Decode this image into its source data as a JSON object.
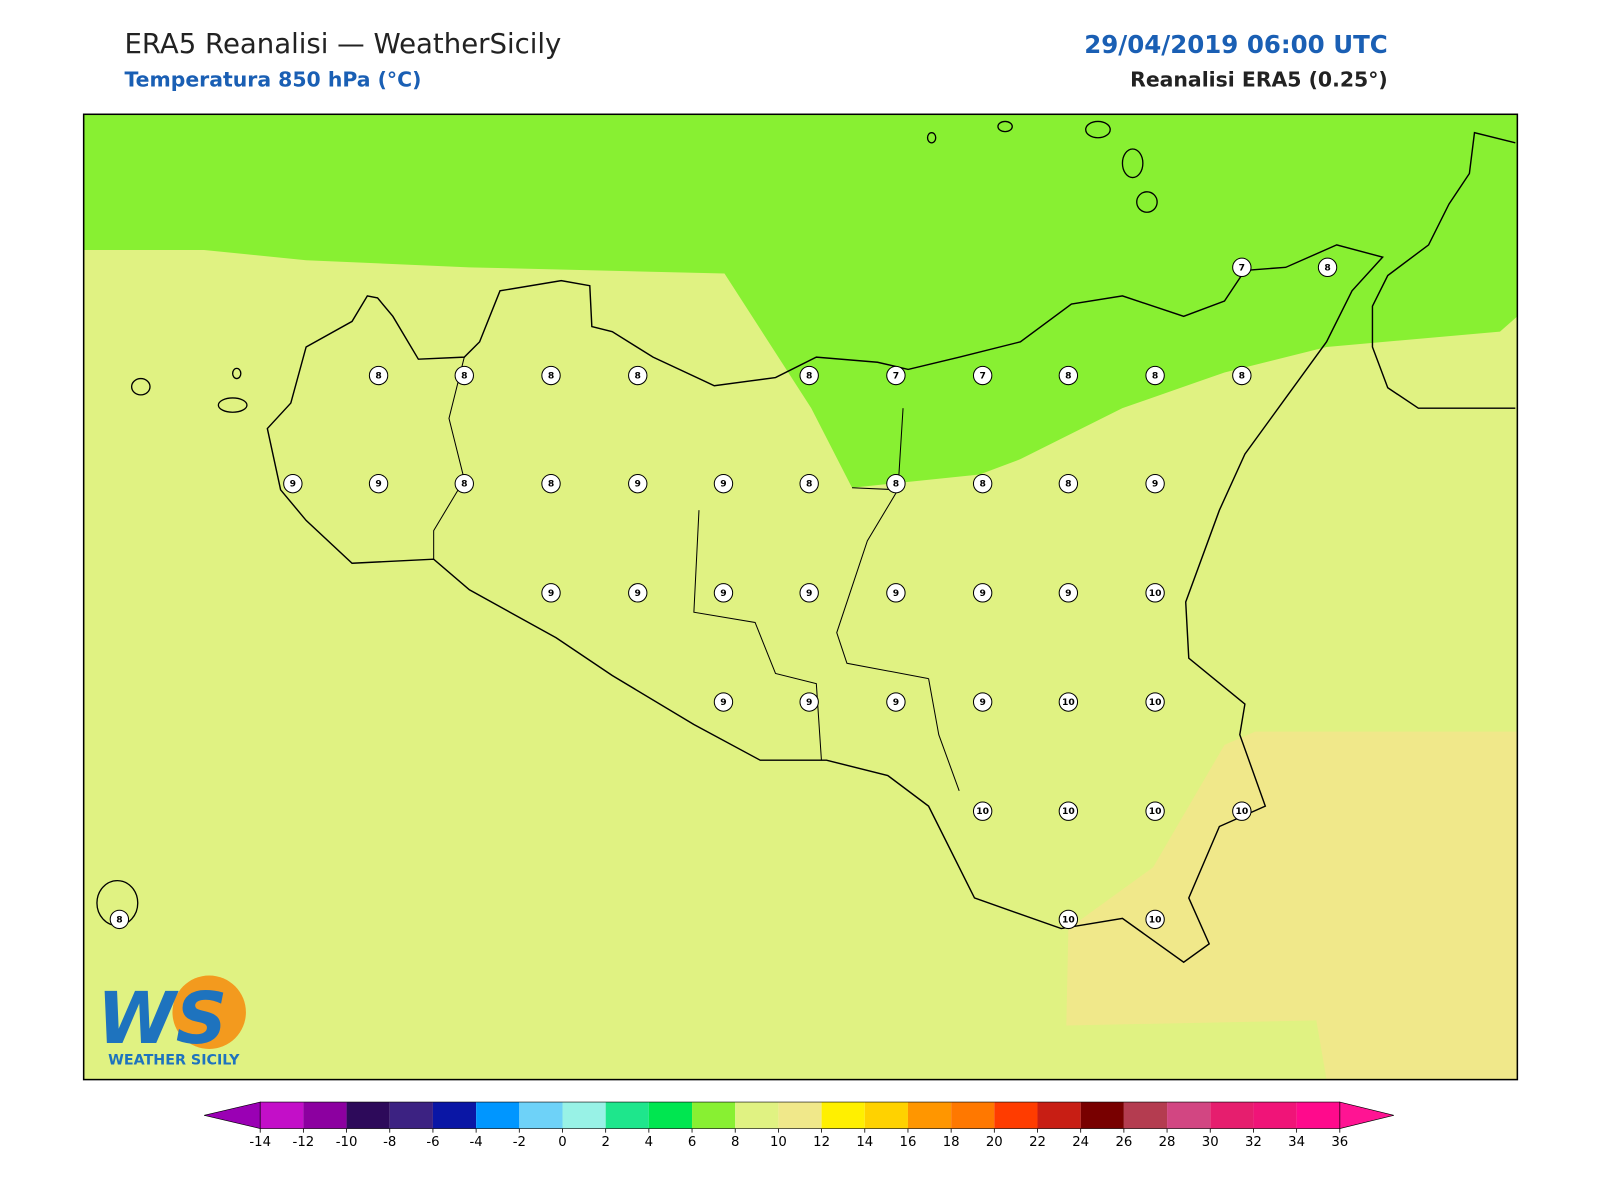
{
  "header": {
    "title": "ERA5 Reanalisi — WeatherSicily",
    "subtitle": "Temperatura 850 hPa (°C)",
    "date": "29/04/2019 06:00 UTC",
    "source": "Reanalisi ERA5 (0.25°)"
  },
  "stations": [
    7,
    8,
    8,
    8,
    8,
    8,
    8,
    7,
    7,
    8,
    8,
    8,
    9,
    9,
    8,
    8,
    9,
    9,
    8,
    8,
    8,
    8,
    9,
    9,
    9,
    9,
    9,
    9,
    9,
    9,
    10,
    9,
    9,
    9,
    9,
    10,
    10,
    10,
    10,
    10,
    10,
    8,
    10,
    10
  ],
  "colorbar": {
    "ticks": [
      -14,
      -12,
      -10,
      -8,
      -6,
      -4,
      -2,
      0,
      2,
      4,
      6,
      8,
      10,
      12,
      14,
      16,
      18,
      20,
      22,
      24,
      26,
      28,
      30,
      32,
      34,
      36
    ],
    "colors": [
      "#c30fc8",
      "#8c00a0",
      "#2d0a5a",
      "#3c2282",
      "#0a16a5",
      "#0096ff",
      "#6ed2f8",
      "#98f2e6",
      "#1ee68c",
      "#00e650",
      "#88f032",
      "#e0f282",
      "#f0e88a",
      "#fff000",
      "#ffd200",
      "#ff9600",
      "#ff7800",
      "#ff3c00",
      "#c81e14",
      "#780000",
      "#b43c50",
      "#d24682",
      "#e61e6e",
      "#f01478",
      "#ff0a8c"
    ],
    "under": "#9a00b4",
    "over": "#ff1493"
  },
  "logo": {
    "mark": "WS",
    "text": "WEATHER SICILY"
  }
}
